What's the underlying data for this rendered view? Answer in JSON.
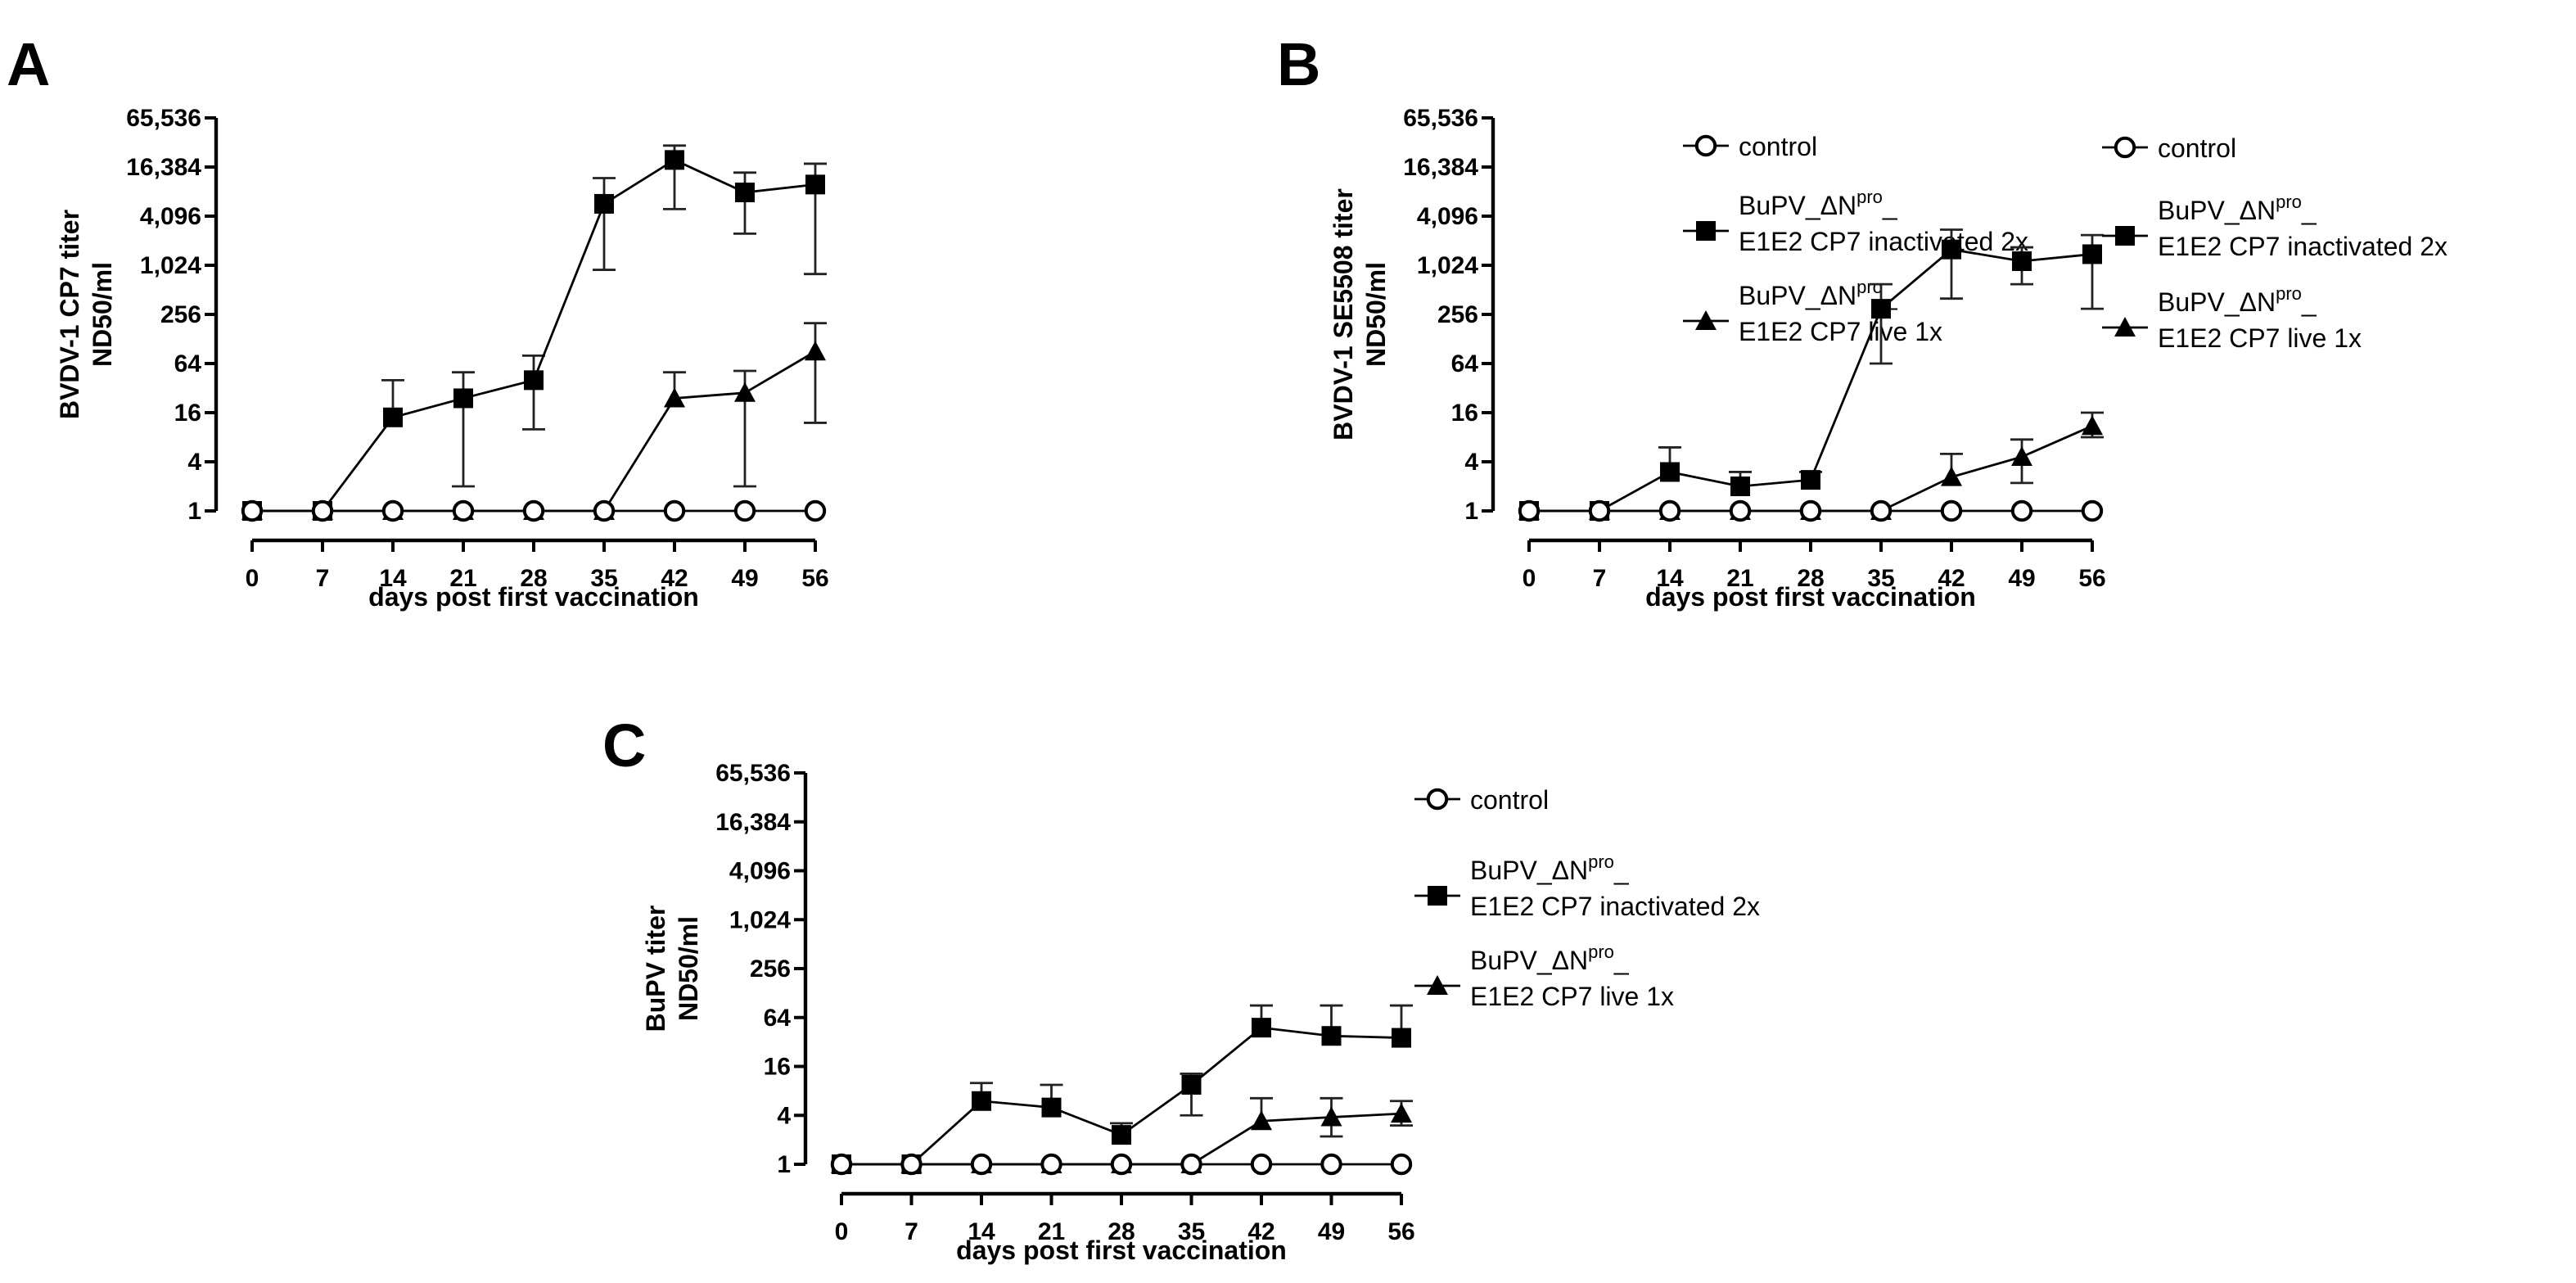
{
  "chart_data": [
    {
      "panel": "A",
      "type": "line",
      "ylabel_line1": "BVDV-1 CP7 titer",
      "ylabel_line2": "ND50/ml",
      "xlabel": "days post first vaccination",
      "y_scale": "log2",
      "ylim": [
        1,
        65536
      ],
      "ytick_values": [
        1,
        4,
        16,
        64,
        256,
        1024,
        4096,
        16384,
        65536
      ],
      "ytick_labels": [
        "1",
        "4",
        "16",
        "64",
        "256",
        "1,024",
        "4,096",
        "16,384",
        "65,536"
      ],
      "xlim": [
        0,
        56
      ],
      "x": [
        0,
        7,
        14,
        21,
        28,
        35,
        42,
        49,
        56
      ],
      "series": [
        {
          "name": "control",
          "marker": "open-circle",
          "values": [
            1,
            1,
            1,
            1,
            1,
            1,
            1,
            1,
            1
          ],
          "err_up": [
            null,
            null,
            null,
            null,
            null,
            null,
            null,
            null,
            null
          ],
          "err_down": [
            null,
            null,
            null,
            null,
            null,
            null,
            null,
            null,
            null
          ]
        },
        {
          "name": "inactivated",
          "marker": "filled-square",
          "values": [
            1,
            1,
            14,
            24,
            40,
            5800,
            20000,
            8000,
            10000
          ],
          "err_up": [
            null,
            null,
            40,
            50,
            80,
            12000,
            30000,
            14000,
            18000
          ],
          "err_down": [
            null,
            null,
            null,
            2,
            10,
            900,
            5000,
            2500,
            800
          ]
        },
        {
          "name": "live",
          "marker": "filled-triangle",
          "values": [
            1,
            1,
            1,
            1,
            1,
            1,
            24,
            28,
            90
          ],
          "err_up": [
            null,
            null,
            null,
            null,
            null,
            null,
            50,
            52,
            200
          ],
          "err_down": [
            null,
            null,
            null,
            null,
            null,
            null,
            null,
            2,
            12
          ]
        }
      ]
    },
    {
      "panel": "B",
      "type": "line",
      "ylabel_line1": "BVDV-1 SE5508 titer",
      "ylabel_line2": "ND50/ml",
      "xlabel": "days post first vaccination",
      "y_scale": "log2",
      "ylim": [
        1,
        65536
      ],
      "ytick_values": [
        1,
        4,
        16,
        64,
        256,
        1024,
        4096,
        16384,
        65536
      ],
      "ytick_labels": [
        "1",
        "4",
        "16",
        "64",
        "256",
        "1,024",
        "4,096",
        "16,384",
        "65,536"
      ],
      "xlim": [
        0,
        56
      ],
      "x": [
        0,
        7,
        14,
        21,
        28,
        35,
        42,
        49,
        56
      ],
      "series": [
        {
          "name": "control",
          "marker": "open-circle",
          "values": [
            1,
            1,
            1,
            1,
            1,
            1,
            1,
            1,
            1
          ],
          "err_up": [
            null,
            null,
            null,
            null,
            null,
            null,
            null,
            null,
            null
          ],
          "err_down": [
            null,
            null,
            null,
            null,
            null,
            null,
            null,
            null,
            null
          ]
        },
        {
          "name": "inactivated",
          "marker": "filled-square",
          "values": [
            1,
            1,
            3,
            2,
            2.4,
            300,
            1600,
            1150,
            1400
          ],
          "err_up": [
            null,
            null,
            6,
            3,
            3,
            600,
            2800,
            1700,
            2400
          ],
          "err_down": [
            null,
            null,
            null,
            null,
            null,
            64,
            400,
            600,
            300
          ]
        },
        {
          "name": "live",
          "marker": "filled-triangle",
          "values": [
            1,
            1,
            1,
            1,
            1,
            1,
            2.6,
            4.6,
            11
          ],
          "err_up": [
            null,
            null,
            null,
            null,
            null,
            null,
            5,
            7.5,
            16
          ],
          "err_down": [
            null,
            null,
            null,
            null,
            null,
            null,
            null,
            2.2,
            8
          ]
        }
      ]
    },
    {
      "panel": "C",
      "type": "line",
      "ylabel_line1": "BuPV titer",
      "ylabel_line2": "ND50/ml",
      "xlabel": "days post first vaccination",
      "y_scale": "log2",
      "ylim": [
        1,
        65536
      ],
      "ytick_values": [
        1,
        4,
        16,
        64,
        256,
        1024,
        4096,
        16384,
        65536
      ],
      "ytick_labels": [
        "1",
        "4",
        "16",
        "64",
        "256",
        "1,024",
        "4,096",
        "16,384",
        "65,536"
      ],
      "xlim": [
        0,
        56
      ],
      "x": [
        0,
        7,
        14,
        21,
        28,
        35,
        42,
        49,
        56
      ],
      "series": [
        {
          "name": "control",
          "marker": "open-circle",
          "values": [
            1,
            1,
            1,
            1,
            1,
            1,
            1,
            1,
            1
          ],
          "err_up": [
            null,
            null,
            null,
            null,
            null,
            null,
            null,
            null,
            null
          ],
          "err_down": [
            null,
            null,
            null,
            null,
            null,
            null,
            null,
            null,
            null
          ]
        },
        {
          "name": "inactivated",
          "marker": "filled-square",
          "values": [
            1,
            1,
            6,
            5,
            2.3,
            9.5,
            48,
            38,
            36
          ],
          "err_up": [
            null,
            null,
            10,
            9.5,
            3.2,
            13,
            90,
            90,
            90
          ],
          "err_down": [
            null,
            null,
            null,
            null,
            null,
            4,
            null,
            null,
            null
          ]
        },
        {
          "name": "live",
          "marker": "filled-triangle",
          "values": [
            1,
            1,
            1,
            1,
            1,
            1,
            3.4,
            3.8,
            4.2
          ],
          "err_up": [
            null,
            null,
            null,
            null,
            null,
            null,
            6.5,
            6.5,
            6
          ],
          "err_down": [
            null,
            null,
            null,
            null,
            null,
            null,
            null,
            2.2,
            3
          ]
        }
      ]
    }
  ],
  "legend": {
    "control": "control",
    "inactivated_line1_a": "BuPV_",
    "inactivated_line1_delta": "ΔN",
    "inactivated_line1_sup": "pro",
    "inactivated_line1_end": "_",
    "inactivated_line2": "E1E2 CP7 inactivated 2x",
    "live_line1_a": "BuPV_",
    "live_line1_delta": "ΔN",
    "live_line1_sup": "pro",
    "live_line1_end": "_",
    "live_line2": "E1E2 CP7 live 1x"
  }
}
